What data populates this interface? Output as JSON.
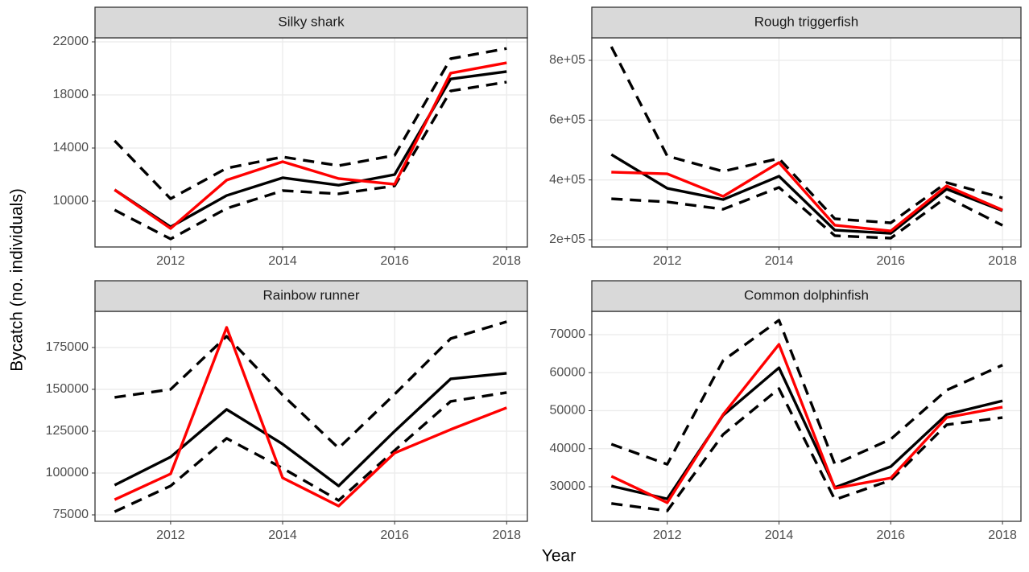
{
  "xlabel": "Year",
  "ylabel": "Bycatch (no. individuals)",
  "chart_data": [
    {
      "type": "line",
      "title": "Silky shark",
      "x": [
        2011,
        2012,
        2013,
        2014,
        2015,
        2016,
        2017,
        2018
      ],
      "xlim": [
        2010.65,
        2018.37
      ],
      "xticks": [
        2012,
        2014,
        2016,
        2018
      ],
      "ylim": [
        6545,
        22303
      ],
      "yticks": [
        10000,
        14000,
        18000,
        22000
      ],
      "grid": true,
      "series": [
        {
          "color": "#000000",
          "dashed": true,
          "values": [
            14550,
            10180,
            12480,
            13330,
            12670,
            13450,
            20730,
            21500
          ]
        },
        {
          "color": "#000000",
          "dashed": true,
          "values": [
            9330,
            7150,
            9450,
            10790,
            10550,
            11150,
            18300,
            18970
          ]
        },
        {
          "color": "#000000",
          "dashed": false,
          "values": [
            10850,
            8060,
            10420,
            11760,
            11200,
            12000,
            19200,
            19760
          ]
        },
        {
          "color": "#ff0000",
          "dashed": false,
          "values": [
            10850,
            7940,
            11580,
            12970,
            11700,
            11270,
            19640,
            20420
          ]
        }
      ]
    },
    {
      "type": "line",
      "title": "Rough triggerfish",
      "x": [
        2011,
        2012,
        2013,
        2014,
        2015,
        2016,
        2017,
        2018
      ],
      "xlim": [
        2010.65,
        2018.33
      ],
      "xticks": [
        2012,
        2014,
        2016,
        2018
      ],
      "ylim": [
        175800,
        875300
      ],
      "yticks": [
        {
          "value": 200000,
          "label": "2e+05"
        },
        {
          "value": 400000,
          "label": "4e+05"
        },
        {
          "value": 600000,
          "label": "6e+05"
        },
        {
          "value": 800000,
          "label": "8e+05"
        }
      ],
      "grid": true,
      "series": [
        {
          "color": "#000000",
          "dashed": true,
          "values": [
            845600,
            480000,
            428700,
            471700,
            270000,
            256500,
            391000,
            340000
          ]
        },
        {
          "color": "#000000",
          "dashed": true,
          "values": [
            337000,
            326500,
            302000,
            375000,
            213500,
            205400,
            342600,
            248000
          ]
        },
        {
          "color": "#000000",
          "dashed": false,
          "values": [
            485000,
            372000,
            334500,
            412500,
            232000,
            221500,
            369500,
            297000
          ]
        },
        {
          "color": "#ff0000",
          "dashed": false,
          "values": [
            426000,
            420500,
            345000,
            458000,
            248500,
            229500,
            380000,
            299500
          ]
        }
      ]
    },
    {
      "type": "line",
      "title": "Rainbow runner",
      "x": [
        2011,
        2012,
        2013,
        2014,
        2015,
        2016,
        2017,
        2018
      ],
      "xlim": [
        2010.65,
        2018.37
      ],
      "xticks": [
        2012,
        2014,
        2016,
        2018
      ],
      "ylim": [
        71150,
        196600
      ],
      "yticks": [
        75000,
        100000,
        125000,
        150000,
        175000
      ],
      "grid": true,
      "series": [
        {
          "color": "#000000",
          "dashed": true,
          "values": [
            145200,
            150000,
            181700,
            146600,
            114900,
            147100,
            180300,
            190400
          ]
        },
        {
          "color": "#000000",
          "dashed": true,
          "values": [
            76900,
            92300,
            120700,
            102900,
            83650,
            113500,
            142800,
            148100
          ]
        },
        {
          "color": "#000000",
          "dashed": false,
          "values": [
            92800,
            109600,
            138000,
            117300,
            92300,
            125000,
            156250,
            159600
          ]
        },
        {
          "color": "#ff0000",
          "dashed": false,
          "values": [
            84100,
            99500,
            187000,
            97100,
            80300,
            112000,
            126000,
            139000
          ]
        }
      ]
    },
    {
      "type": "line",
      "title": "Common dolphinfish",
      "x": [
        2011,
        2012,
        2013,
        2014,
        2015,
        2016,
        2017,
        2018
      ],
      "xlim": [
        2010.65,
        2018.33
      ],
      "xticks": [
        2012,
        2014,
        2016,
        2018
      ],
      "ylim": [
        20900,
        76140
      ],
      "yticks": [
        30000,
        40000,
        50000,
        60000,
        70000
      ],
      "grid": true,
      "series": [
        {
          "color": "#000000",
          "dashed": true,
          "values": [
            41200,
            35900,
            63200,
            73800,
            35900,
            42500,
            55400,
            62000
          ]
        },
        {
          "color": "#000000",
          "dashed": true,
          "values": [
            25600,
            23650,
            43750,
            55800,
            26600,
            31700,
            46300,
            48200
          ]
        },
        {
          "color": "#000000",
          "dashed": false,
          "values": [
            30200,
            26800,
            48800,
            61300,
            29800,
            35300,
            49000,
            52600
          ]
        },
        {
          "color": "#ff0000",
          "dashed": false,
          "values": [
            32750,
            25800,
            49000,
            67450,
            29600,
            32300,
            48200,
            50950
          ]
        }
      ]
    }
  ]
}
